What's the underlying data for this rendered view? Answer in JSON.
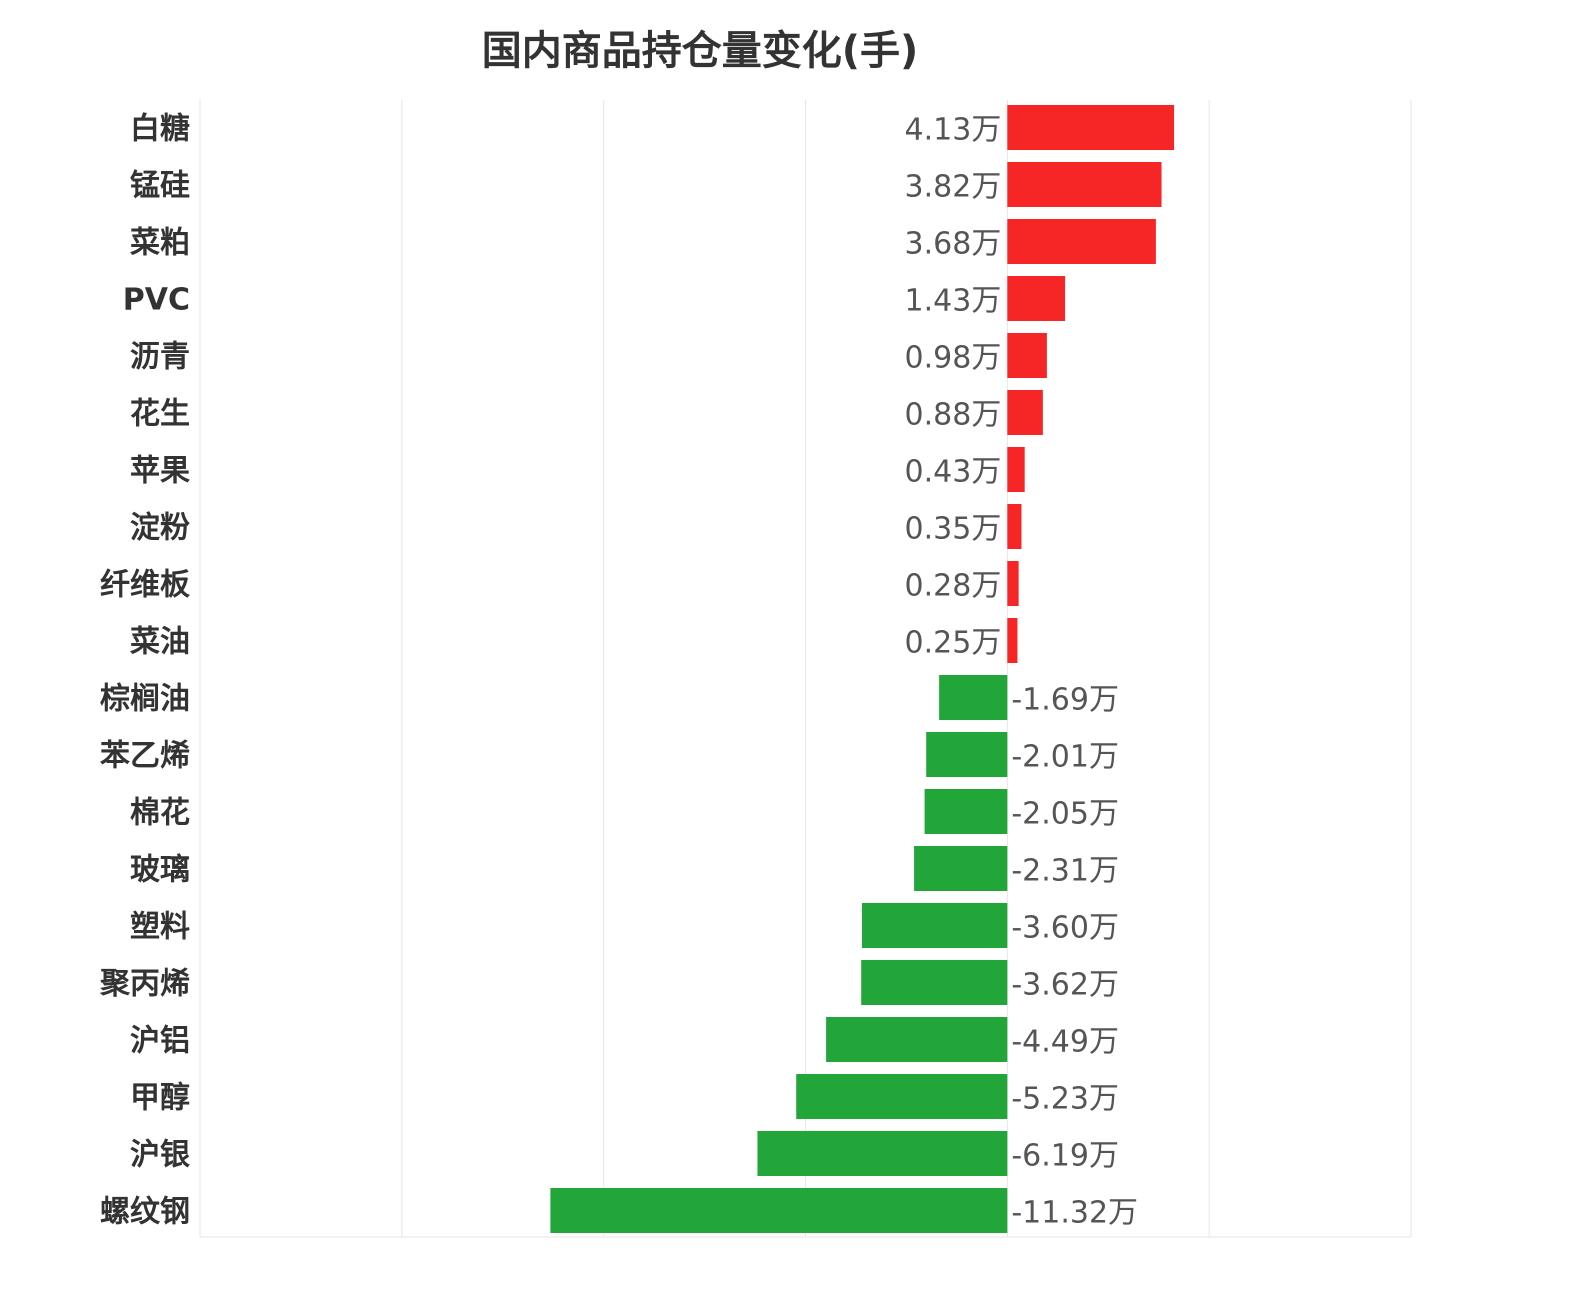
{
  "chart_data": {
    "type": "bar",
    "orientation": "horizontal",
    "title": "国内商品持仓量变化(手)",
    "xlabel": "",
    "ylabel": "",
    "unit": "万",
    "xlim": [
      -20,
      10
    ],
    "grid": true,
    "categories": [
      "白糖",
      "锰硅",
      "菜粕",
      "PVC",
      "沥青",
      "花生",
      "苹果",
      "淀粉",
      "纤维板",
      "菜油",
      "棕榈油",
      "苯乙烯",
      "棉花",
      "玻璃",
      "塑料",
      "聚丙烯",
      "沪铝",
      "甲醇",
      "沪银",
      "螺纹钢"
    ],
    "values": [
      4.13,
      3.82,
      3.68,
      1.43,
      0.98,
      0.88,
      0.43,
      0.35,
      0.28,
      0.25,
      -1.69,
      -2.01,
      -2.05,
      -2.31,
      -3.6,
      -3.62,
      -4.49,
      -5.23,
      -6.19,
      -11.32
    ],
    "labels": [
      "4.13万",
      "3.82万",
      "3.68万",
      "1.43万",
      "0.98万",
      "0.88万",
      "0.43万",
      "0.35万",
      "0.28万",
      "0.25万",
      "-1.69万",
      "-2.01万",
      "-2.05万",
      "-2.31万",
      "-3.60万",
      "-3.62万",
      "-4.49万",
      "-5.23万",
      "-6.19万",
      "-11.32万"
    ],
    "colors": {
      "positive": "#f72626",
      "negative": "#22a63a",
      "grid": "#e6e6e6"
    }
  }
}
